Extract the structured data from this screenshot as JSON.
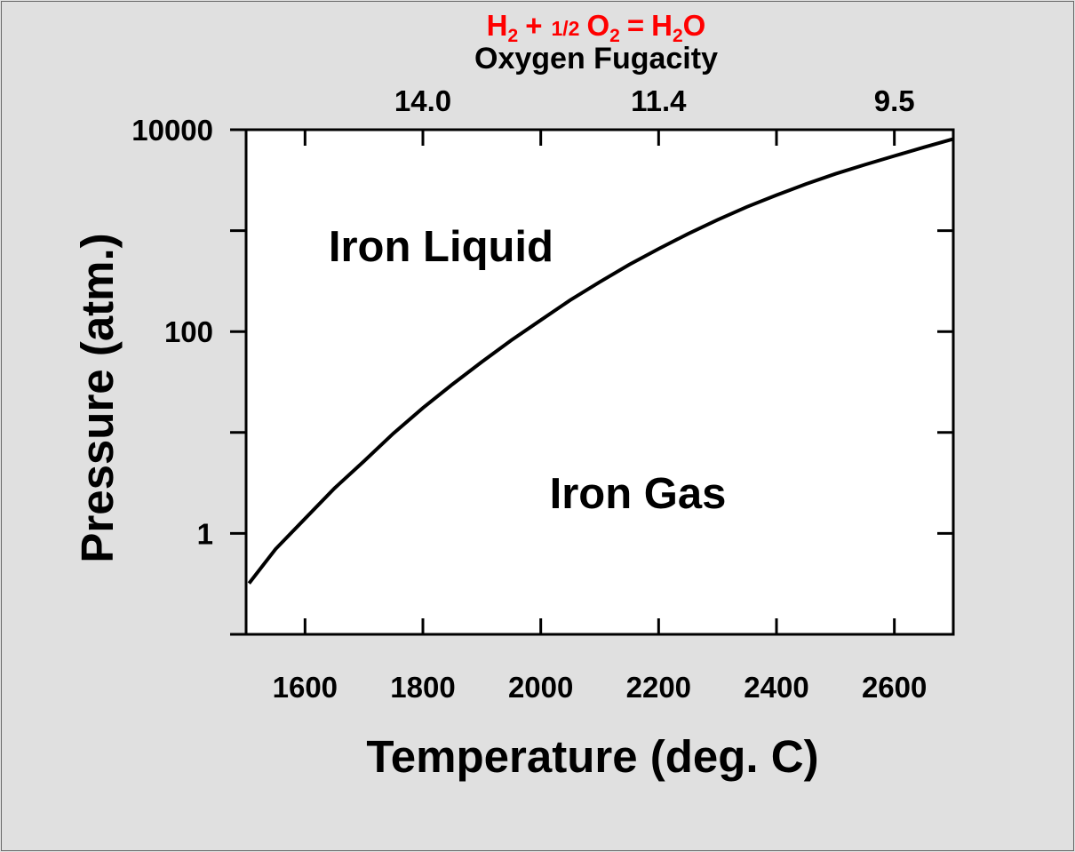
{
  "chart_data": {
    "type": "line",
    "reaction": {
      "h": "H",
      "two": "2",
      "plus": "+",
      "half": "1/2",
      "o": "O",
      "equals": "=",
      "h2o_o": "O",
      "color": "#ff0000"
    },
    "top_axis_label": "Oxygen Fugacity",
    "top_ticks": [
      {
        "x": 1800,
        "label": "14.0"
      },
      {
        "x": 2200,
        "label": "11.4"
      },
      {
        "x": 2600,
        "label": "9.5"
      }
    ],
    "xlabel": "Temperature (deg. C)",
    "ylabel": "Pressure (atm.)",
    "xlim": [
      1500,
      2700
    ],
    "ylim": [
      0.1,
      10000
    ],
    "yscale": "log",
    "x_ticks": [
      1600,
      1800,
      2000,
      2200,
      2400,
      2600
    ],
    "y_tick_labels": [
      {
        "value": 1,
        "label": "1"
      },
      {
        "value": 100,
        "label": "100"
      },
      {
        "value": 10000,
        "label": "10000"
      }
    ],
    "y_minor_ticks": [
      0.1,
      10,
      1000
    ],
    "series": [
      {
        "x": [
          1505,
          1550,
          1600,
          1650,
          1700,
          1750,
          1800,
          1850,
          1900,
          1950,
          2000,
          2050,
          2100,
          2150,
          2200,
          2250,
          2300,
          2350,
          2400,
          2450,
          2500,
          2550,
          2600,
          2650,
          2700
        ],
        "y": [
          0.32,
          0.7,
          1.4,
          2.8,
          5.2,
          9.8,
          17.5,
          30,
          50,
          82,
          130,
          205,
          310,
          460,
          660,
          930,
          1280,
          1720,
          2250,
          2900,
          3650,
          4500,
          5500,
          6700,
          8100
        ]
      }
    ],
    "annotations": [
      {
        "text": "Iron Liquid",
        "x": 1640,
        "y": 700
      },
      {
        "text": "Iron Gas",
        "x": 2015,
        "y": 2.5
      }
    ],
    "grid": false
  }
}
